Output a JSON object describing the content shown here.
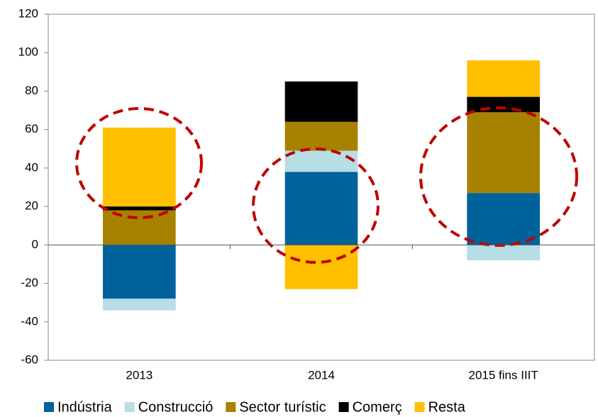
{
  "chart_data": {
    "type": "bar",
    "stacked": true,
    "categories": [
      "2013",
      "2014",
      "2015 fins IIIT"
    ],
    "series": [
      {
        "name": "Indústria",
        "color": "#00629b",
        "values": [
          -28,
          38,
          27
        ]
      },
      {
        "name": "Construcció",
        "color": "#b7dde5",
        "values": [
          -6,
          11,
          -8
        ]
      },
      {
        "name": "Sector turístic",
        "color": "#a68200",
        "values": [
          18,
          15,
          42
        ]
      },
      {
        "name": "Comerç",
        "color": "#000000",
        "values": [
          2,
          21,
          8
        ]
      },
      {
        "name": "Resta",
        "color": "#ffc000",
        "values": [
          41,
          -23,
          19
        ]
      }
    ],
    "ylim": [
      -60,
      120
    ],
    "yticks": [
      -60,
      -40,
      -20,
      0,
      20,
      40,
      60,
      80,
      100,
      120
    ],
    "legend": "bottom"
  }
}
